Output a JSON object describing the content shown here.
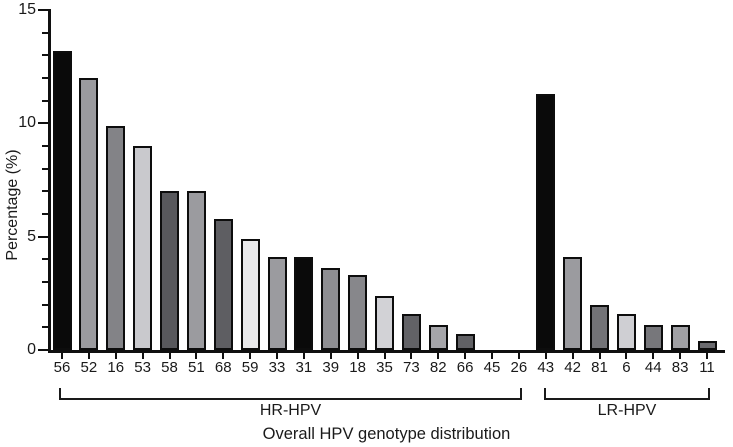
{
  "chart_data": {
    "type": "bar",
    "title": "Overall HPV genotype distribution",
    "ylabel": "Percentage (%)",
    "xlabel": "",
    "ylim": [
      0,
      15
    ],
    "y_major_ticks": [
      0,
      5,
      10,
      15
    ],
    "y_minor_tick_step": 1,
    "grid": false,
    "legend": false,
    "bar_outline_color": "#0d0d0d",
    "categories": [
      "56",
      "52",
      "16",
      "53",
      "58",
      "51",
      "68",
      "59",
      "33",
      "31",
      "39",
      "18",
      "35",
      "73",
      "82",
      "66",
      "45",
      "26",
      "43",
      "42",
      "81",
      "6",
      "44",
      "83",
      "11"
    ],
    "values": [
      13.2,
      12.0,
      9.9,
      9.0,
      7.0,
      7.0,
      5.8,
      4.9,
      4.1,
      4.1,
      3.6,
      3.3,
      2.4,
      1.6,
      1.1,
      0.7,
      0,
      0,
      11.3,
      4.1,
      2.0,
      1.6,
      1.1,
      1.1,
      0.4
    ],
    "bar_colors": [
      "#0a0a0a",
      "#9b9b9f",
      "#838387",
      "#c9c9cd",
      "#58585c",
      "#9b9b9f",
      "#5e5e62",
      "#e9e9eb",
      "#9b9b9f",
      "#0a0a0a",
      "#8e8e92",
      "#87878b",
      "#d2d2d6",
      "#626266",
      "#a5a5a9",
      "#616165",
      null,
      null,
      "#0a0a0a",
      "#9b9b9f",
      "#737377",
      "#cfcfd3",
      "#77777b",
      "#a0a0a4",
      "#6a6a6e"
    ],
    "groups": [
      {
        "label": "HR-HPV",
        "genotypes": [
          "56",
          "52",
          "16",
          "53",
          "58",
          "51",
          "68",
          "59",
          "33",
          "31",
          "39",
          "18",
          "35",
          "73",
          "82",
          "66",
          "45",
          "26"
        ]
      },
      {
        "label": "LR-HPV",
        "genotypes": [
          "43",
          "42",
          "81",
          "6",
          "44",
          "83",
          "11"
        ]
      }
    ]
  }
}
